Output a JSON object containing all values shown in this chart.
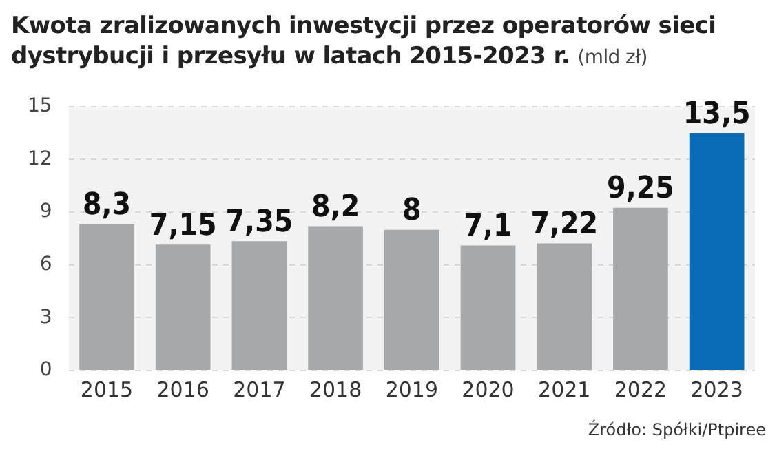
{
  "chart_data": {
    "type": "bar",
    "title": "Kwota zralizowanych inwestycji przez operatorów sieci dystrybucji i przesyłu w latach 2015-2023 r.",
    "subtitle": "(mld zł)",
    "categories": [
      "2015",
      "2016",
      "2017",
      "2018",
      "2019",
      "2020",
      "2021",
      "2022",
      "2023"
    ],
    "values": [
      8.3,
      7.15,
      7.35,
      8.2,
      8,
      7.1,
      7.22,
      9.25,
      13.5
    ],
    "colors": [
      "#a7a8aa",
      "#a7a8aa",
      "#a7a8aa",
      "#a7a8aa",
      "#a7a8aa",
      "#a7a8aa",
      "#a7a8aa",
      "#a7a8aa",
      "#0a6cb5"
    ],
    "value_labels": [
      "8,3",
      "7,15",
      "7,35",
      "8,2",
      "8",
      "7,1",
      "7,22",
      "9,25",
      "13,5"
    ],
    "ylim": [
      0,
      15
    ],
    "yticks": [
      0,
      3,
      6,
      9,
      12,
      15
    ],
    "grid": "y",
    "legend": false,
    "annotations": [
      "Źródło: Spółki/Ptpiree"
    ]
  }
}
